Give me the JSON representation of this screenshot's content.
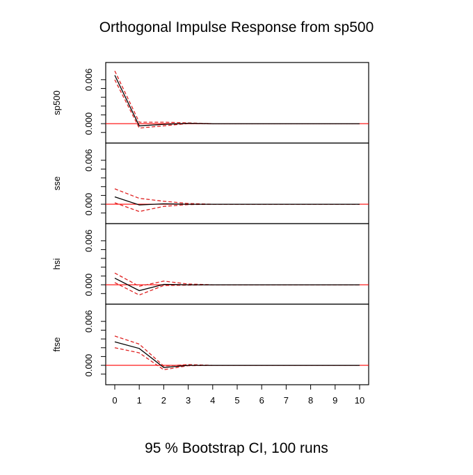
{
  "chart_data": {
    "type": "line",
    "title": "Orthogonal Impulse Response from sp500",
    "footer": "95 % Bootstrap CI,  100 runs",
    "x": [
      0,
      1,
      2,
      3,
      4,
      5,
      6,
      7,
      8,
      9,
      10
    ],
    "x_tick_labels": [
      "0",
      "1",
      "2",
      "3",
      "4",
      "5",
      "6",
      "7",
      "8",
      "9",
      "10"
    ],
    "xlim": [
      0,
      10
    ],
    "ylim": [
      -0.0017,
      0.0074
    ],
    "y_tick_labels": [
      "0.000",
      "0.006"
    ],
    "zero_line_color": "#ff0000",
    "response_color": "#000000",
    "ci_color": "#df2020",
    "panels": [
      {
        "name": "sp500",
        "response": [
          0.0066,
          -0.0003,
          -0.0001,
          5e-05,
          0,
          0,
          0,
          0,
          0,
          0,
          0
        ],
        "upper": [
          0.0072,
          0.0002,
          0.0002,
          0.0001,
          0,
          0,
          0,
          0,
          0,
          0,
          0
        ],
        "lower": [
          0.006,
          -0.0006,
          -0.0003,
          2e-05,
          0,
          0,
          0,
          0,
          0,
          0,
          0
        ]
      },
      {
        "name": "sse",
        "response": [
          0.001,
          -0.0001,
          5e-05,
          0,
          0,
          0,
          0,
          0,
          0,
          0,
          0
        ],
        "upper": [
          0.0021,
          0.0008,
          0.0004,
          0.0001,
          0,
          0,
          0,
          0,
          0,
          0,
          0
        ],
        "lower": [
          0.0002,
          -0.001,
          -0.0003,
          -5e-05,
          0,
          0,
          0,
          0,
          0,
          0,
          0
        ]
      },
      {
        "name": "hsi",
        "response": [
          0.0009,
          -0.0008,
          5e-05,
          0,
          0,
          0,
          0,
          0,
          0,
          0,
          0
        ],
        "upper": [
          0.0016,
          -0.0002,
          0.0005,
          0.0001,
          0,
          0,
          0,
          0,
          0,
          0,
          0
        ],
        "lower": [
          0.0003,
          -0.0014,
          -0.0001,
          -5e-05,
          0,
          0,
          0,
          0,
          0,
          0,
          0
        ]
      },
      {
        "name": "ftse",
        "response": [
          0.0032,
          0.0023,
          -0.0003,
          0,
          0,
          0,
          0,
          0,
          0,
          0,
          0
        ],
        "upper": [
          0.004,
          0.0029,
          -0.0001,
          0.0001,
          0,
          0,
          0,
          0,
          0,
          0,
          0
        ],
        "lower": [
          0.0024,
          0.0017,
          -0.0006,
          -5e-05,
          0,
          0,
          0,
          0,
          0,
          0,
          0
        ]
      }
    ]
  }
}
